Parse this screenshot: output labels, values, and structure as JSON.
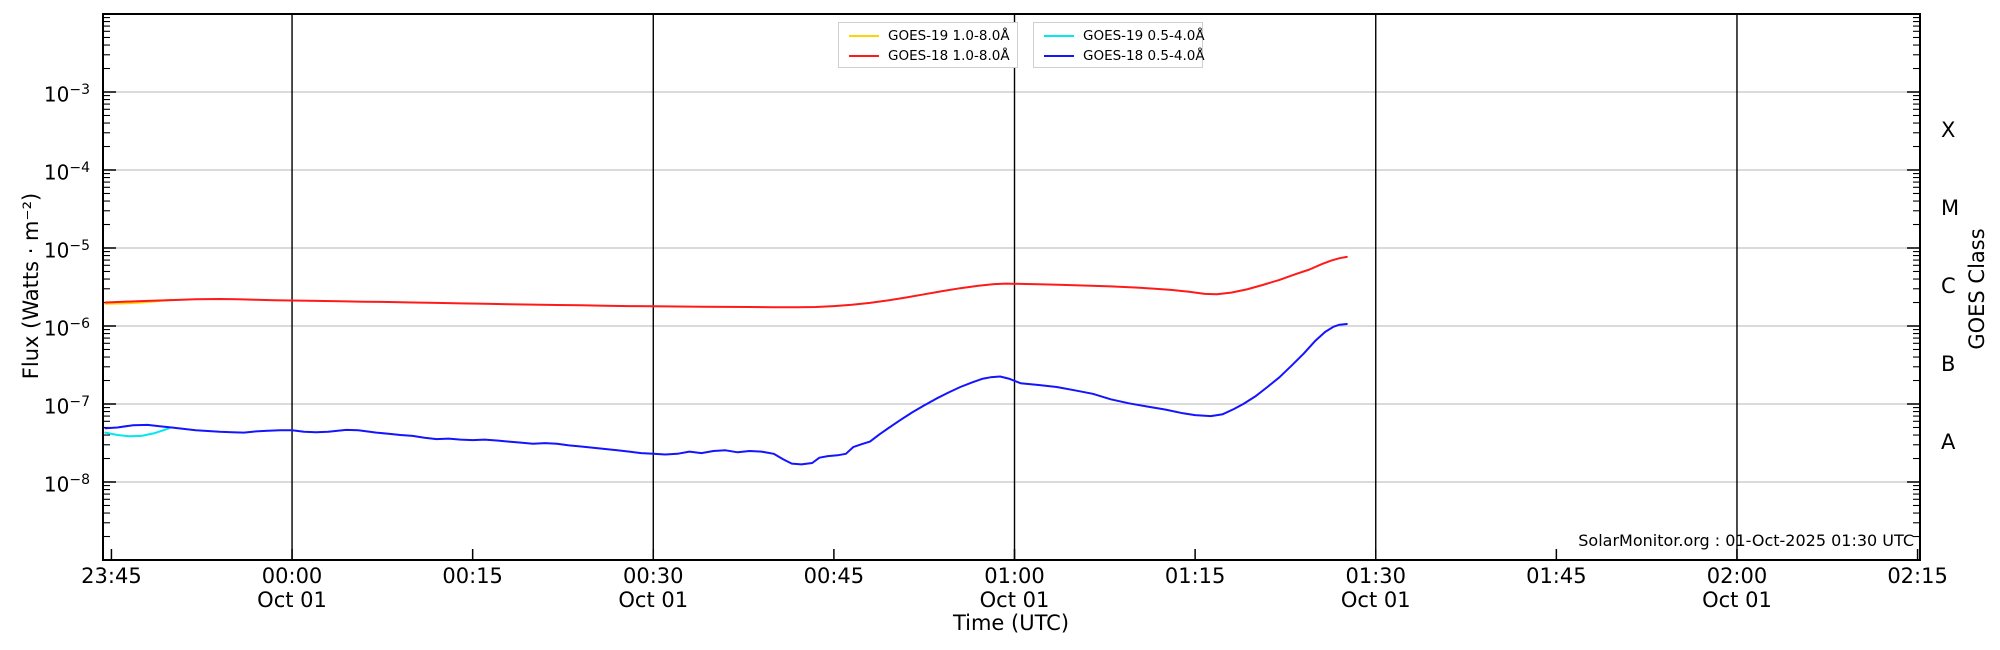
{
  "chart_data": {
    "type": "line",
    "title": "",
    "xlabel": "Time (UTC)",
    "ylabel": "Flux (Watts · m⁻²)",
    "right_axis_label": "GOES Class",
    "annotation": "SolarMonitor.org : 01-Oct-2025 01:30 UTC",
    "x_unit": "minutes relative to 00:00 Oct 01",
    "x_domain": [
      -15.7,
      135.2
    ],
    "y_domain_exp": [
      -2,
      -9
    ],
    "grid": {
      "horizontal": "decade gray lines",
      "vertical": "30-min black lines"
    },
    "legend_position": "top-center, two boxes",
    "x_ticks": [
      {
        "t": -15,
        "label": "23:45"
      },
      {
        "t": 0,
        "label": "00:00",
        "sub": "Oct 01",
        "grid": true
      },
      {
        "t": 15,
        "label": "00:15"
      },
      {
        "t": 30,
        "label": "00:30",
        "sub": "Oct 01",
        "grid": true
      },
      {
        "t": 45,
        "label": "00:45"
      },
      {
        "t": 60,
        "label": "01:00",
        "sub": "Oct 01",
        "grid": true
      },
      {
        "t": 75,
        "label": "01:15"
      },
      {
        "t": 90,
        "label": "01:30",
        "sub": "Oct 01",
        "grid": true
      },
      {
        "t": 105,
        "label": "01:45"
      },
      {
        "t": 120,
        "label": "02:00",
        "sub": "Oct 01",
        "grid": true
      },
      {
        "t": 135,
        "label": "02:15"
      }
    ],
    "y_ticks_exp": [
      -3,
      -4,
      -5,
      -6,
      -7,
      -8
    ],
    "goes_classes": [
      {
        "label": "X",
        "exp": -3.5
      },
      {
        "label": "M",
        "exp": -4.5
      },
      {
        "label": "C",
        "exp": -5.5
      },
      {
        "label": "B",
        "exp": -6.5
      },
      {
        "label": "A",
        "exp": -7.5
      }
    ],
    "colors": {
      "background": "#ffffff",
      "spine": "#000000",
      "grid_h": "#c3c3c3",
      "grid_v": "#000000",
      "tick": "#000000",
      "text": "#000000"
    },
    "legend": {
      "boxes": [
        {
          "name": "long-channel",
          "series_indexes": [
            0,
            1
          ]
        },
        {
          "name": "short-channel",
          "series_indexes": [
            2,
            3
          ]
        }
      ]
    },
    "series": [
      {
        "name": "GOES-19 1.0-8.0Å",
        "color": "#ffd400",
        "points": [
          [
            -15.5,
            1.93e-06
          ],
          [
            -14,
            1.95e-06
          ],
          [
            -12.5,
            2e-06
          ],
          [
            -11.5,
            2.06e-06
          ],
          [
            -10.5,
            2.13e-06
          ],
          [
            -10,
            2.17e-06
          ]
        ]
      },
      {
        "name": "GOES-18 1.0-8.0Å",
        "color": "#ff1a1a",
        "points": [
          [
            -15.5,
            2e-06
          ],
          [
            -14,
            2.05e-06
          ],
          [
            -12,
            2.1e-06
          ],
          [
            -10,
            2.15e-06
          ],
          [
            -8,
            2.2e-06
          ],
          [
            -6,
            2.22e-06
          ],
          [
            -4.5,
            2.2e-06
          ],
          [
            -3,
            2.17e-06
          ],
          [
            -1.5,
            2.14e-06
          ],
          [
            0,
            2.12e-06
          ],
          [
            2,
            2.1e-06
          ],
          [
            4,
            2.08e-06
          ],
          [
            6,
            2.05e-06
          ],
          [
            8,
            2.03e-06
          ],
          [
            10,
            2e-06
          ],
          [
            12,
            1.98e-06
          ],
          [
            14,
            1.95e-06
          ],
          [
            16,
            1.93e-06
          ],
          [
            18,
            1.9e-06
          ],
          [
            20,
            1.88e-06
          ],
          [
            22,
            1.86e-06
          ],
          [
            24,
            1.84e-06
          ],
          [
            26,
            1.82e-06
          ],
          [
            28,
            1.8e-06
          ],
          [
            30,
            1.79e-06
          ],
          [
            32,
            1.78e-06
          ],
          [
            34,
            1.77e-06
          ],
          [
            36,
            1.76e-06
          ],
          [
            38,
            1.75e-06
          ],
          [
            40,
            1.74e-06
          ],
          [
            42,
            1.74e-06
          ],
          [
            43.5,
            1.75e-06
          ],
          [
            45,
            1.8e-06
          ],
          [
            46.5,
            1.87e-06
          ],
          [
            48,
            1.98e-06
          ],
          [
            49.5,
            2.13e-06
          ],
          [
            51,
            2.32e-06
          ],
          [
            52.5,
            2.55e-06
          ],
          [
            54,
            2.8e-06
          ],
          [
            55.5,
            3.05e-06
          ],
          [
            57,
            3.28e-06
          ],
          [
            58.3,
            3.45e-06
          ],
          [
            59.3,
            3.5e-06
          ],
          [
            60.5,
            3.47e-06
          ],
          [
            62,
            3.42e-06
          ],
          [
            64,
            3.36e-06
          ],
          [
            66,
            3.3e-06
          ],
          [
            68,
            3.22e-06
          ],
          [
            70,
            3.12e-06
          ],
          [
            71.5,
            3.02e-06
          ],
          [
            73,
            2.9e-06
          ],
          [
            74.5,
            2.75e-06
          ],
          [
            75.8,
            2.58e-06
          ],
          [
            76.8,
            2.55e-06
          ],
          [
            78,
            2.68e-06
          ],
          [
            79.3,
            2.95e-06
          ],
          [
            80.6,
            3.35e-06
          ],
          [
            82,
            3.9e-06
          ],
          [
            83.3,
            4.6e-06
          ],
          [
            84.5,
            5.3e-06
          ],
          [
            85.5,
            6.2e-06
          ],
          [
            86.3,
            6.9e-06
          ],
          [
            87,
            7.4e-06
          ],
          [
            87.6,
            7.7e-06
          ]
        ]
      },
      {
        "name": "GOES-19 0.5-4.0Å",
        "color": "#00e8f0",
        "points": [
          [
            -15.5,
            4.3e-08
          ],
          [
            -14.5,
            4e-08
          ],
          [
            -13.5,
            3.85e-08
          ],
          [
            -12.5,
            3.9e-08
          ],
          [
            -11.5,
            4.2e-08
          ],
          [
            -10.7,
            4.6e-08
          ],
          [
            -10.2,
            4.9e-08
          ]
        ]
      },
      {
        "name": "GOES-18 0.5-4.0Å",
        "color": "#1414ff",
        "points": [
          [
            -15.5,
            4.9e-08
          ],
          [
            -14.5,
            5e-08
          ],
          [
            -13.2,
            5.35e-08
          ],
          [
            -12,
            5.4e-08
          ],
          [
            -11,
            5.2e-08
          ],
          [
            -10,
            5e-08
          ],
          [
            -9,
            4.8e-08
          ],
          [
            -8,
            4.6e-08
          ],
          [
            -7,
            4.5e-08
          ],
          [
            -6,
            4.4e-08
          ],
          [
            -5,
            4.35e-08
          ],
          [
            -4,
            4.3e-08
          ],
          [
            -3,
            4.45e-08
          ],
          [
            -2,
            4.55e-08
          ],
          [
            -1,
            4.6e-08
          ],
          [
            0,
            4.6e-08
          ],
          [
            1,
            4.4e-08
          ],
          [
            2,
            4.35e-08
          ],
          [
            3,
            4.4e-08
          ],
          [
            4.5,
            4.65e-08
          ],
          [
            5.5,
            4.6e-08
          ],
          [
            7,
            4.3e-08
          ],
          [
            8,
            4.15e-08
          ],
          [
            9,
            4e-08
          ],
          [
            10,
            3.9e-08
          ],
          [
            11,
            3.7e-08
          ],
          [
            12,
            3.55e-08
          ],
          [
            13,
            3.6e-08
          ],
          [
            14,
            3.5e-08
          ],
          [
            15,
            3.45e-08
          ],
          [
            16,
            3.5e-08
          ],
          [
            17,
            3.4e-08
          ],
          [
            18,
            3.3e-08
          ],
          [
            19,
            3.2e-08
          ],
          [
            20,
            3.1e-08
          ],
          [
            21,
            3.15e-08
          ],
          [
            22,
            3.1e-08
          ],
          [
            23,
            2.95e-08
          ],
          [
            24,
            2.85e-08
          ],
          [
            25,
            2.75e-08
          ],
          [
            26,
            2.65e-08
          ],
          [
            27,
            2.55e-08
          ],
          [
            28,
            2.45e-08
          ],
          [
            29,
            2.35e-08
          ],
          [
            30,
            2.3e-08
          ],
          [
            31,
            2.25e-08
          ],
          [
            32,
            2.3e-08
          ],
          [
            33,
            2.45e-08
          ],
          [
            34,
            2.35e-08
          ],
          [
            35,
            2.5e-08
          ],
          [
            36,
            2.55e-08
          ],
          [
            37,
            2.4e-08
          ],
          [
            38,
            2.5e-08
          ],
          [
            39,
            2.45e-08
          ],
          [
            40,
            2.3e-08
          ],
          [
            40.8,
            1.95e-08
          ],
          [
            41.5,
            1.72e-08
          ],
          [
            42.3,
            1.68e-08
          ],
          [
            43.2,
            1.75e-08
          ],
          [
            43.8,
            2.05e-08
          ],
          [
            44.5,
            2.15e-08
          ],
          [
            45.3,
            2.2e-08
          ],
          [
            46,
            2.3e-08
          ],
          [
            46.6,
            2.8e-08
          ],
          [
            47.3,
            3.05e-08
          ],
          [
            48,
            3.3e-08
          ],
          [
            48.8,
            4.1e-08
          ],
          [
            49.6,
            5e-08
          ],
          [
            50.5,
            6.2e-08
          ],
          [
            51.5,
            7.8e-08
          ],
          [
            52.5,
            9.6e-08
          ],
          [
            53.5,
            1.17e-07
          ],
          [
            54.5,
            1.4e-07
          ],
          [
            55.5,
            1.65e-07
          ],
          [
            56.5,
            1.9e-07
          ],
          [
            57.3,
            2.1e-07
          ],
          [
            58,
            2.2e-07
          ],
          [
            58.8,
            2.25e-07
          ],
          [
            59.6,
            2.1e-07
          ],
          [
            60.5,
            1.85e-07
          ],
          [
            62,
            1.75e-07
          ],
          [
            63.5,
            1.65e-07
          ],
          [
            65,
            1.5e-07
          ],
          [
            66.5,
            1.35e-07
          ],
          [
            68,
            1.15e-07
          ],
          [
            69.5,
            1.02e-07
          ],
          [
            71,
            9.3e-08
          ],
          [
            72.5,
            8.5e-08
          ],
          [
            74,
            7.6e-08
          ],
          [
            75,
            7.2e-08
          ],
          [
            76.3,
            7e-08
          ],
          [
            77.3,
            7.4e-08
          ],
          [
            78.2,
            8.6e-08
          ],
          [
            79,
            1e-07
          ],
          [
            80,
            1.25e-07
          ],
          [
            81,
            1.65e-07
          ],
          [
            82,
            2.2e-07
          ],
          [
            83,
            3.1e-07
          ],
          [
            84,
            4.4e-07
          ],
          [
            85,
            6.5e-07
          ],
          [
            85.8,
            8.4e-07
          ],
          [
            86.5,
            9.8e-07
          ],
          [
            87,
            1.04e-06
          ],
          [
            87.6,
            1.06e-06
          ]
        ]
      }
    ]
  }
}
